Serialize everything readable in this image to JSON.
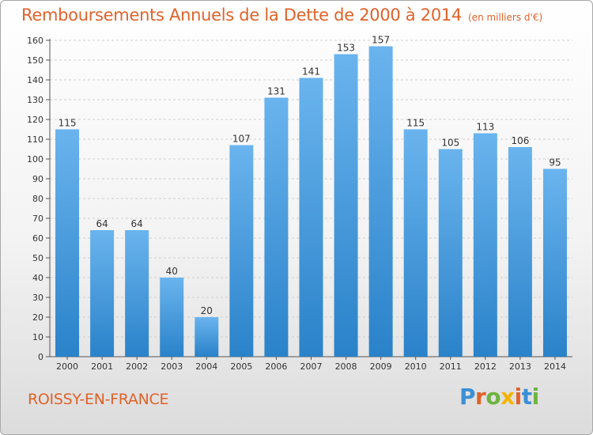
{
  "title": "Remboursements Annuels de la Dette de 2000 à 2014",
  "subtitle": "(en milliers d'€)",
  "commune": "ROISSY-EN-FRANCE",
  "logo": {
    "letters": [
      "P",
      "r",
      "o",
      "x",
      "i",
      "t",
      "i"
    ],
    "colors": [
      "#3a8fd6",
      "#e0622a",
      "#6db33f",
      "#f5b400",
      "#e0622a",
      "#3a8fd6",
      "#6db33f"
    ]
  },
  "colors": {
    "bar_light": "#6ab4ee",
    "bar_dark": "#2a82c9",
    "title": "#e0622a"
  },
  "chart_data": {
    "type": "bar",
    "title": "Remboursements Annuels de la Dette de 2000 à 2014",
    "subtitle": "(en milliers d'€)",
    "xlabel": "",
    "ylabel": "",
    "categories": [
      "2000",
      "2001",
      "2002",
      "2003",
      "2004",
      "2005",
      "2006",
      "2007",
      "2008",
      "2009",
      "2010",
      "2011",
      "2012",
      "2013",
      "2014"
    ],
    "values": [
      115,
      64,
      64,
      40,
      20,
      107,
      131,
      141,
      153,
      157,
      115,
      105,
      113,
      106,
      95
    ],
    "ylim": [
      0,
      160
    ],
    "yticks": [
      0,
      10,
      20,
      30,
      40,
      50,
      60,
      70,
      80,
      90,
      100,
      110,
      120,
      130,
      140,
      150,
      160
    ],
    "grid": true,
    "data_labels": true
  }
}
